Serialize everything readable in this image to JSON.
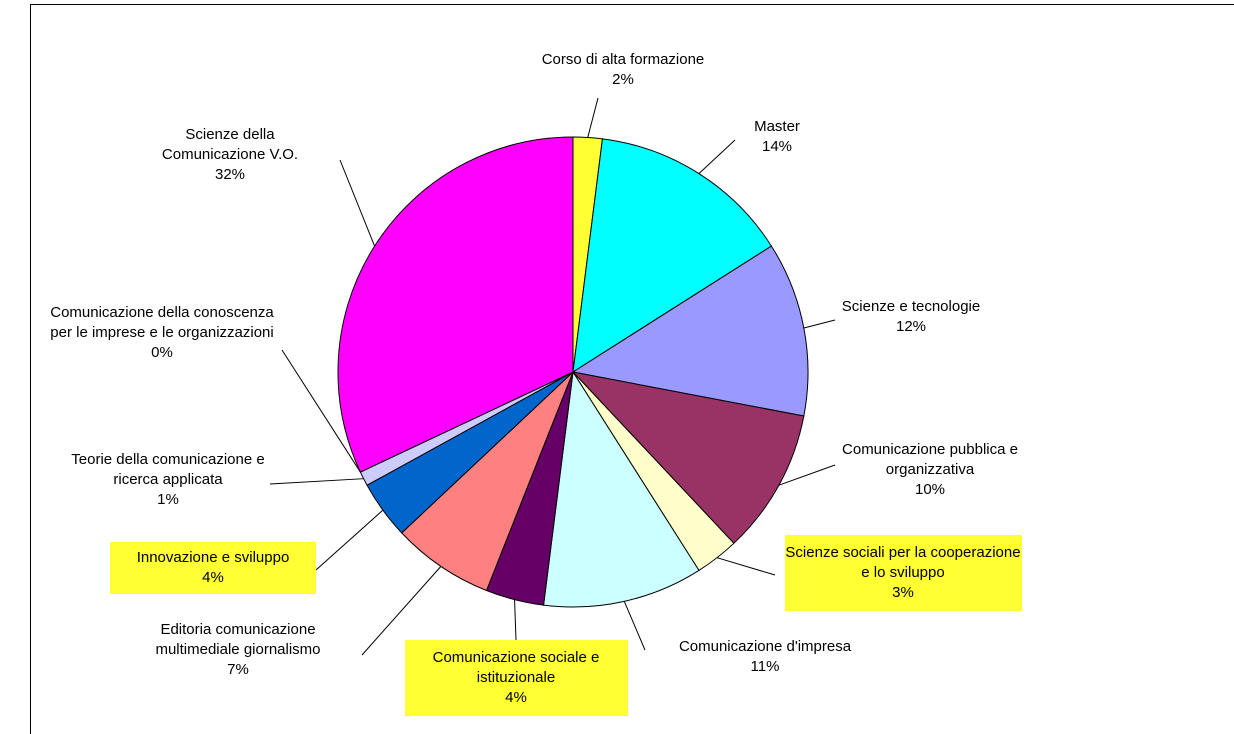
{
  "chart_data": {
    "type": "pie",
    "categories": [
      "Corso di alta formazione",
      "Master",
      "Scienze e tecnologie",
      "Comunicazione pubblica e organizzativa",
      "Scienze sociali per la cooperazione e lo sviluppo",
      "Comunicazione d'impresa",
      "Comunicazione sociale e istituzionale",
      "Editoria comunicazione multimediale giornalismo",
      "Innovazione e sviluppo",
      "Teorie della comunicazione e ricerca applicata",
      "Comunicazione della conoscenza per le imprese e le organizzazioni",
      "Scienze della Comunicazione V.O."
    ],
    "values": [
      2,
      14,
      12,
      10,
      3,
      11,
      4,
      7,
      4,
      1,
      0,
      32
    ],
    "value_labels": [
      "2%",
      "14%",
      "12%",
      "10%",
      "3%",
      "11%",
      "4%",
      "7%",
      "4%",
      "1%",
      "0%",
      "32%"
    ],
    "colors": [
      "#ffff33",
      "#00ffff",
      "#9999ff",
      "#993366",
      "#ffffcc",
      "#ccffff",
      "#660066",
      "#ff8080",
      "#0066cc",
      "#ccccff",
      "#000080",
      "#ff00ff"
    ],
    "label_backgrounds": [
      null,
      null,
      null,
      null,
      "#ffff33",
      null,
      "#ffff33",
      null,
      "#ffff33",
      null,
      null,
      null
    ]
  }
}
